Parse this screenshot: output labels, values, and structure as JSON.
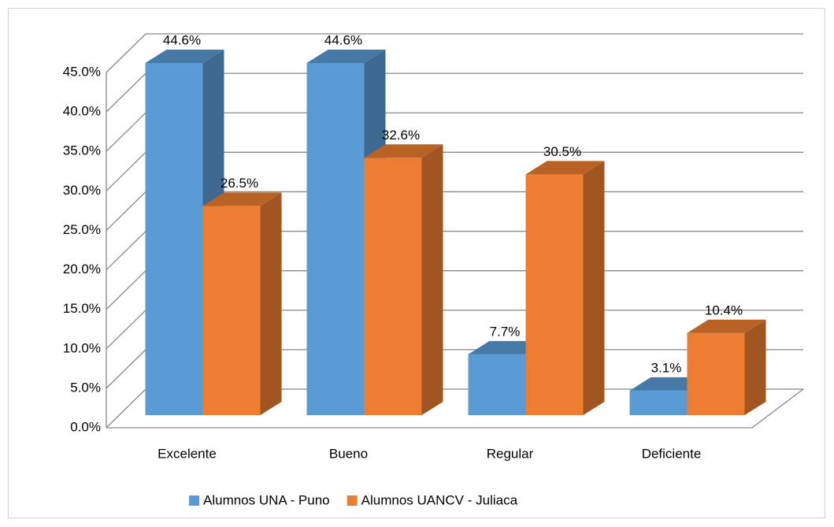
{
  "chart_data": {
    "type": "bar3d",
    "categories": [
      "Excelente",
      "Bueno",
      "Regular",
      "Deficiente"
    ],
    "series": [
      {
        "name": "Alumnos UNA - Puno",
        "color": "#5b9bd5",
        "values": [
          44.6,
          44.6,
          7.7,
          3.1
        ],
        "value_labels": [
          "44.6%",
          "44.6%",
          "7.7%",
          "3.1%"
        ]
      },
      {
        "name": "Alumnos UANCV - Juliaca",
        "color": "#ed7d31",
        "values": [
          26.5,
          32.6,
          30.5,
          10.4
        ],
        "value_labels": [
          "26.5%",
          "32.6%",
          "30.5%",
          "10.4%"
        ]
      }
    ],
    "ylim": [
      0,
      45
    ],
    "yticks": [
      {
        "value": 0,
        "label": "0.0%"
      },
      {
        "value": 5,
        "label": "5.0%"
      },
      {
        "value": 10,
        "label": "10.0%"
      },
      {
        "value": 15,
        "label": "15.0%"
      },
      {
        "value": 20,
        "label": "20.0%"
      },
      {
        "value": 25,
        "label": "25.0%"
      },
      {
        "value": 30,
        "label": "30.0%"
      },
      {
        "value": 35,
        "label": "35.0%"
      },
      {
        "value": 40,
        "label": "40.0%"
      },
      {
        "value": 45,
        "label": "45.0%"
      }
    ],
    "grid": true,
    "legend": "bottom"
  }
}
